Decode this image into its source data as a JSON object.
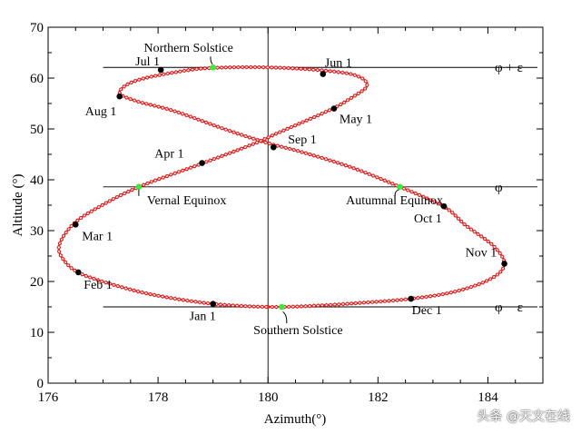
{
  "chart_data": {
    "type": "scatter",
    "xlabel": "Azimuth(°)",
    "ylabel": "Altitude (°)",
    "xlim": [
      176,
      185
    ],
    "ylim": [
      0,
      70
    ],
    "x_ticks": [
      176,
      178,
      180,
      182,
      184
    ],
    "y_ticks": [
      0,
      10,
      20,
      30,
      40,
      50,
      60,
      70
    ],
    "curve": {
      "name": "analemma",
      "color": "#e11b1b",
      "points": [
        [
          180.0,
          15.0
        ],
        [
          180.8,
          15.2
        ],
        [
          181.7,
          15.8
        ],
        [
          182.6,
          16.6
        ],
        [
          183.4,
          18.0
        ],
        [
          184.05,
          20.5
        ],
        [
          184.3,
          23.4
        ],
        [
          184.1,
          27.0
        ],
        [
          183.6,
          31.0
        ],
        [
          183.2,
          34.7
        ],
        [
          182.4,
          38.6
        ],
        [
          181.5,
          42.5
        ],
        [
          180.6,
          45.5
        ],
        [
          180.0,
          47.2
        ],
        [
          179.2,
          50.0
        ],
        [
          178.3,
          53.5
        ],
        [
          177.6,
          55.5
        ],
        [
          177.3,
          57.2
        ],
        [
          177.6,
          59.5
        ],
        [
          178.4,
          61.3
        ],
        [
          179.0,
          62.0
        ],
        [
          180.0,
          62.1
        ],
        [
          181.0,
          61.5
        ],
        [
          181.6,
          60.5
        ],
        [
          181.8,
          58.5
        ],
        [
          181.5,
          56.0
        ],
        [
          181.1,
          53.6
        ],
        [
          180.2,
          49.3
        ],
        [
          179.7,
          46.9
        ],
        [
          178.8,
          43.2
        ],
        [
          177.65,
          38.6
        ],
        [
          176.9,
          34.5
        ],
        [
          176.45,
          31.2
        ],
        [
          176.2,
          27.0
        ],
        [
          176.3,
          24.0
        ],
        [
          176.6,
          21.5
        ],
        [
          177.3,
          19.0
        ],
        [
          178.0,
          17.2
        ],
        [
          179.0,
          15.6
        ],
        [
          180.0,
          15.0
        ]
      ]
    },
    "reference_lines": [
      {
        "y": 62.1,
        "label": "φ + ε"
      },
      {
        "y": 38.6,
        "label": "φ"
      },
      {
        "y": 15.0,
        "label": "φ − ε"
      }
    ],
    "vertical_line_x": 180,
    "months": [
      {
        "label": "Jan 1",
        "x": 179.0,
        "y": 15.6
      },
      {
        "label": "Feb 1",
        "x": 176.55,
        "y": 21.8
      },
      {
        "label": "Mar 1",
        "x": 176.5,
        "y": 31.2
      },
      {
        "label": "Apr 1",
        "x": 178.8,
        "y": 43.3
      },
      {
        "label": "May 1",
        "x": 181.2,
        "y": 54.0
      },
      {
        "label": "Jun 1",
        "x": 181.0,
        "y": 60.8
      },
      {
        "label": "Jul 1",
        "x": 178.05,
        "y": 61.6
      },
      {
        "label": "Aug 1",
        "x": 177.3,
        "y": 56.4
      },
      {
        "label": "Sep 1",
        "x": 180.1,
        "y": 46.4
      },
      {
        "label": "Oct 1",
        "x": 183.2,
        "y": 34.8
      },
      {
        "label": "Nov 1",
        "x": 184.3,
        "y": 23.5
      },
      {
        "label": "Dec 1",
        "x": 182.6,
        "y": 16.6
      }
    ],
    "events": [
      {
        "label": "Northern Solstice",
        "x": 179.0,
        "y": 62.1
      },
      {
        "label": "Vernal Equinox",
        "x": 177.65,
        "y": 38.6
      },
      {
        "label": "Autumnal Equinox",
        "x": 182.4,
        "y": 38.6
      },
      {
        "label": "Southern Solstice",
        "x": 180.25,
        "y": 15.0
      }
    ]
  },
  "watermark": "头条 @天文在线"
}
